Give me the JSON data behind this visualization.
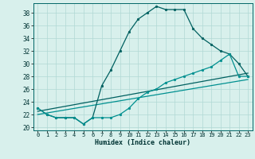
{
  "xlabel": "Humidex (Indice chaleur)",
  "bg_color": "#d8f0ec",
  "grid_color": "#b0d8d4",
  "line_color1": "#006060",
  "line_color2": "#009090",
  "xlim": [
    -0.5,
    23.5
  ],
  "ylim": [
    19.5,
    39.5
  ],
  "yticks": [
    20,
    22,
    24,
    26,
    28,
    30,
    32,
    34,
    36,
    38
  ],
  "xticks": [
    0,
    1,
    2,
    3,
    4,
    5,
    6,
    7,
    8,
    9,
    10,
    11,
    12,
    13,
    14,
    15,
    16,
    17,
    18,
    19,
    20,
    21,
    22,
    23
  ],
  "series1": [
    23,
    22,
    21.5,
    21.5,
    21.5,
    20.5,
    21.5,
    26.5,
    29,
    32,
    35,
    37,
    38,
    39,
    38.5,
    38.5,
    38.5,
    35.5,
    34,
    33,
    32,
    31.5,
    30,
    28
  ],
  "series2": [
    23,
    22,
    21.5,
    21.5,
    21.5,
    20.5,
    21.5,
    21.5,
    21.5,
    22,
    23,
    24.5,
    25.5,
    26,
    27,
    27.5,
    28,
    28.5,
    29,
    29.5,
    30.5,
    31.5,
    28,
    28
  ],
  "series3_x": [
    0,
    23
  ],
  "series3_y": [
    22.5,
    28.5
  ],
  "series4_x": [
    0,
    23
  ],
  "series4_y": [
    22.0,
    27.5
  ]
}
